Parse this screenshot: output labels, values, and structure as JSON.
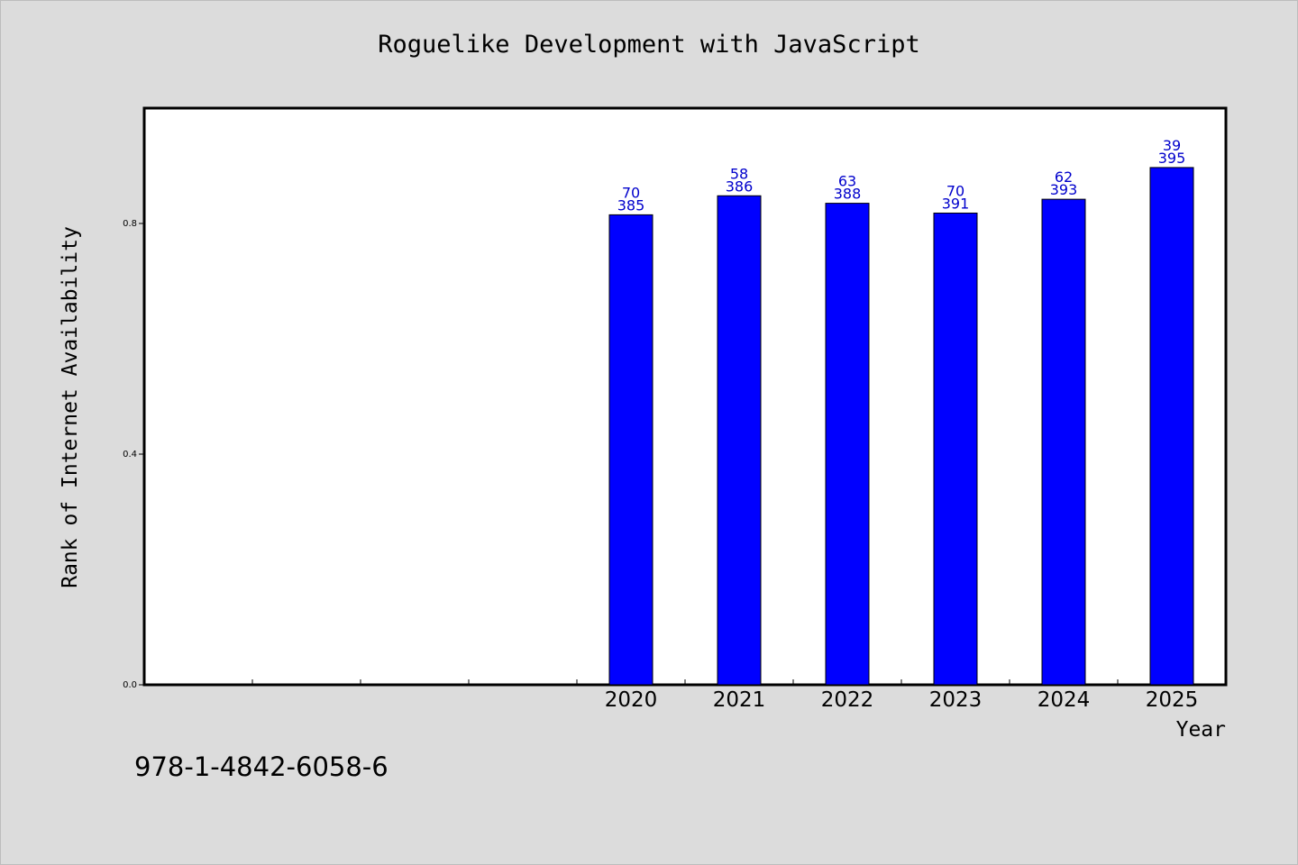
{
  "title": "Roguelike Development with JavaScript",
  "isbn": "978-1-4842-6058-6",
  "colors": {
    "background": "#dcdcdc",
    "plot_background": "#ffffff",
    "bar_fill": "#0000ff",
    "bar_label": "#0000cc"
  },
  "chart_data": {
    "type": "bar",
    "title": "Roguelike Development with JavaScript",
    "xlabel": "Year",
    "ylabel": "Rank of Internet Availability",
    "categories": [
      "",
      "",
      "",
      "",
      "2020",
      "2021",
      "2022",
      "2023",
      "2024",
      "2025"
    ],
    "values": [
      null,
      null,
      null,
      null,
      0.815,
      0.848,
      0.835,
      0.818,
      0.842,
      0.897
    ],
    "bar_labels": [
      null,
      null,
      null,
      null,
      [
        "70",
        "385"
      ],
      [
        "58",
        "386"
      ],
      [
        "63",
        "388"
      ],
      [
        "70",
        "391"
      ],
      [
        "62",
        "393"
      ],
      [
        "39",
        "395"
      ]
    ],
    "ylim": [
      0,
      1.0
    ],
    "yticks": [
      0.0,
      0.4,
      0.8
    ],
    "ytick_labels": [
      "0.0",
      "0.4",
      "0.8"
    ],
    "grid": false,
    "legend": "none"
  }
}
